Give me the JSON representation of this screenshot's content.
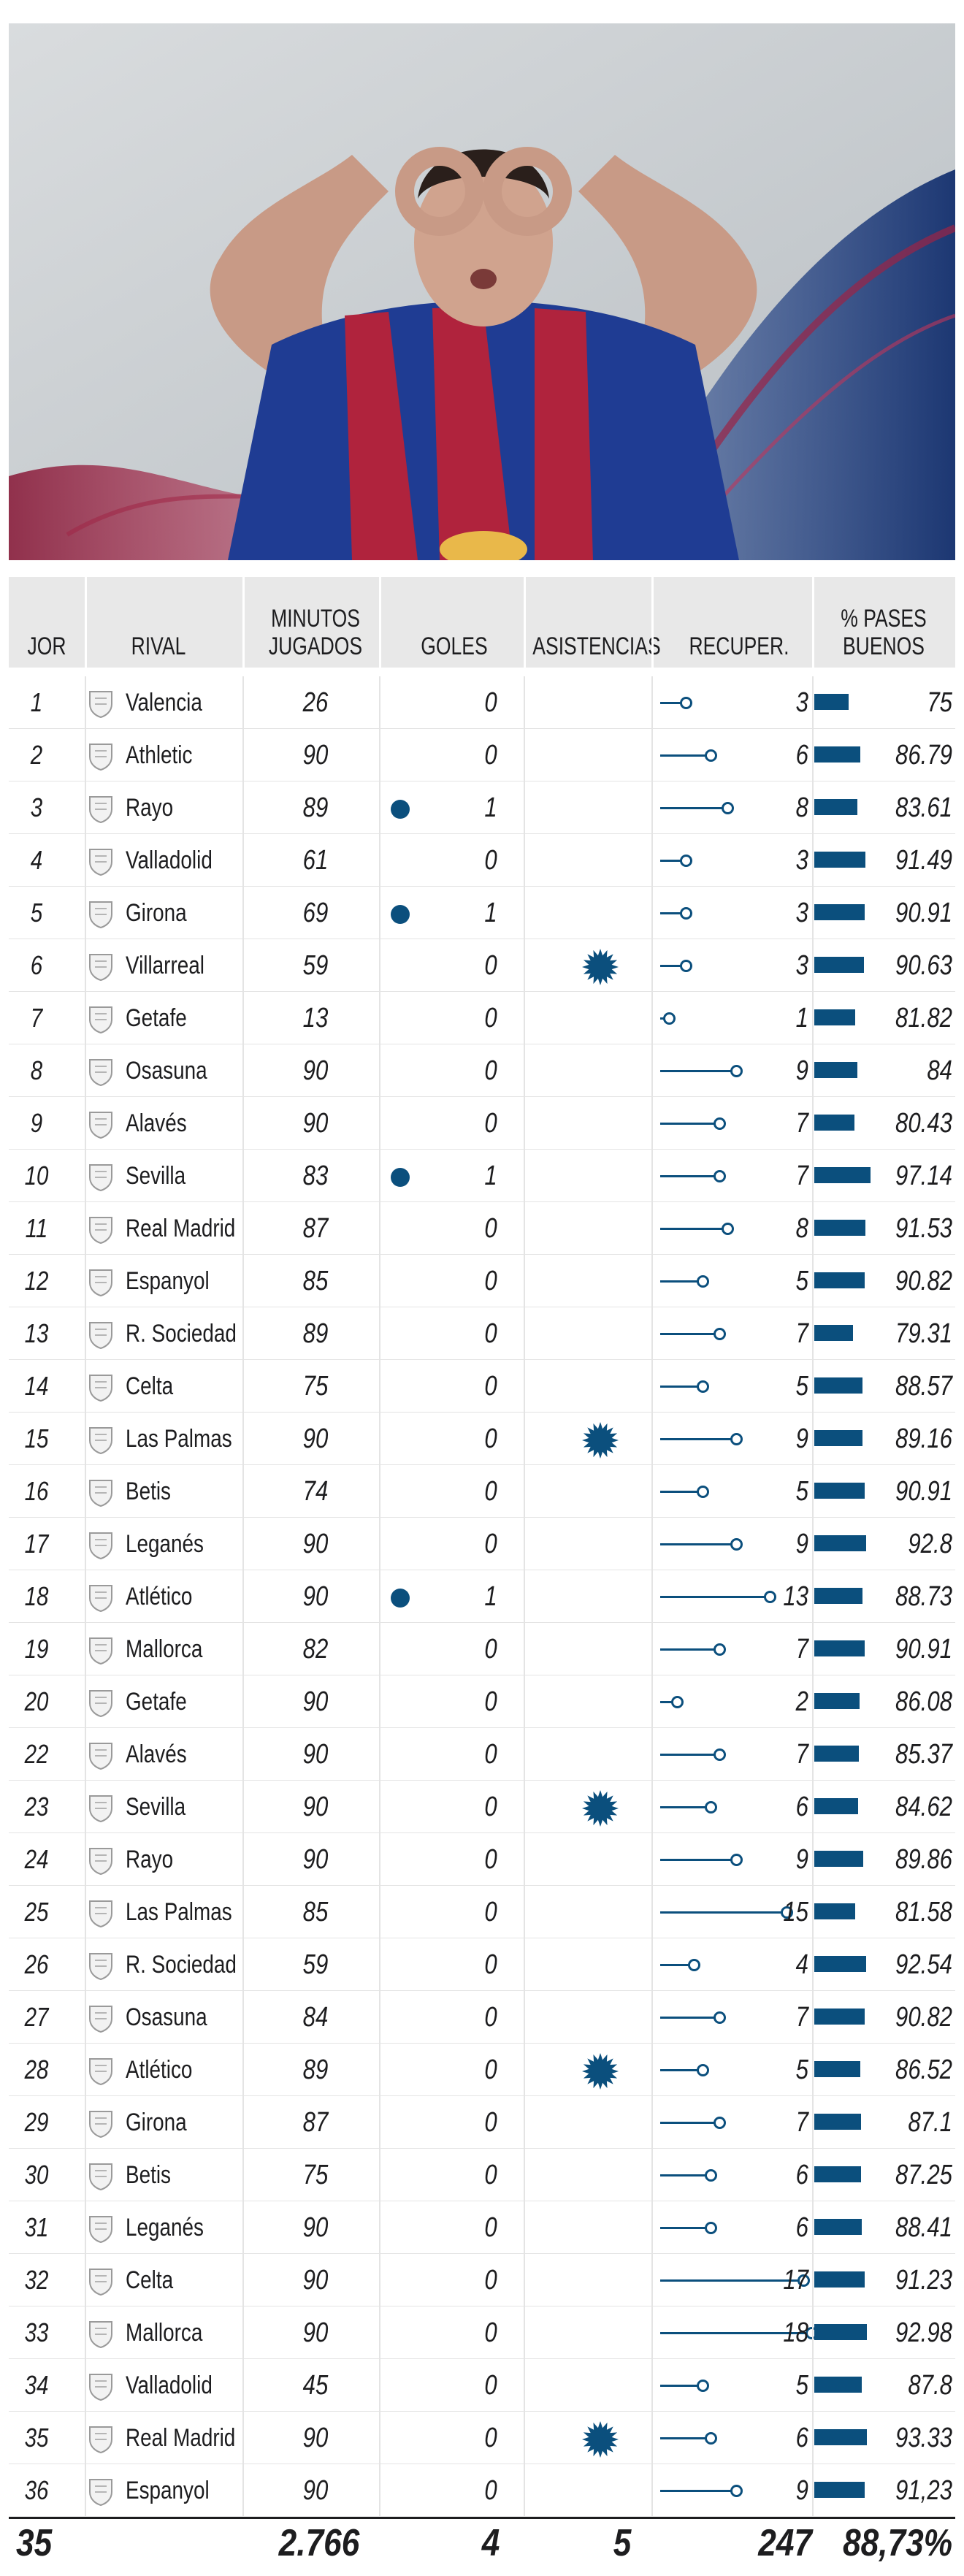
{
  "colors": {
    "accent": "#0b4f7d",
    "header_bg": "#e8e8e8",
    "grid": "#e4e4e4"
  },
  "header": {
    "jor": "JOR",
    "rival": "RIVAL",
    "minutos": "MINUTOS\nJUGADOS",
    "goles": "GOLES",
    "asistencias": "ASISTENCIAS",
    "recuper": "RECUPER.",
    "pases": "% PASES\nBUENOS"
  },
  "chart_data": {
    "type": "table",
    "columns": [
      "JOR",
      "RIVAL",
      "MINUTOS JUGADOS",
      "GOLES",
      "ASISTENCIAS",
      "RECUPER.",
      "% PASES BUENOS"
    ],
    "rows": [
      {
        "jor": "1",
        "rival": "Valencia",
        "min": "26",
        "goles": "0",
        "goal": false,
        "assist": false,
        "rec": 3,
        "pases": "75",
        "pases_value": 75
      },
      {
        "jor": "2",
        "rival": "Athletic",
        "min": "90",
        "goles": "0",
        "goal": false,
        "assist": false,
        "rec": 6,
        "pases": "86.79",
        "pases_value": 86.79
      },
      {
        "jor": "3",
        "rival": "Rayo",
        "min": "89",
        "goles": "1",
        "goal": true,
        "assist": false,
        "rec": 8,
        "pases": "83.61",
        "pases_value": 83.61
      },
      {
        "jor": "4",
        "rival": "Valladolid",
        "min": "61",
        "goles": "0",
        "goal": false,
        "assist": false,
        "rec": 3,
        "pases": "91.49",
        "pases_value": 91.49
      },
      {
        "jor": "5",
        "rival": "Girona",
        "min": "69",
        "goles": "1",
        "goal": true,
        "assist": false,
        "rec": 3,
        "pases": "90.91",
        "pases_value": 90.91
      },
      {
        "jor": "6",
        "rival": "Villarreal",
        "min": "59",
        "goles": "0",
        "goal": false,
        "assist": true,
        "rec": 3,
        "pases": "90.63",
        "pases_value": 90.63
      },
      {
        "jor": "7",
        "rival": "Getafe",
        "min": "13",
        "goles": "0",
        "goal": false,
        "assist": false,
        "rec": 1,
        "pases": "81.82",
        "pases_value": 81.82
      },
      {
        "jor": "8",
        "rival": "Osasuna",
        "min": "90",
        "goles": "0",
        "goal": false,
        "assist": false,
        "rec": 9,
        "pases": "84",
        "pases_value": 84
      },
      {
        "jor": "9",
        "rival": "Alavés",
        "min": "90",
        "goles": "0",
        "goal": false,
        "assist": false,
        "rec": 7,
        "pases": "80.43",
        "pases_value": 80.43
      },
      {
        "jor": "10",
        "rival": "Sevilla",
        "min": "83",
        "goles": "1",
        "goal": true,
        "assist": false,
        "rec": 7,
        "pases": "97.14",
        "pases_value": 97.14
      },
      {
        "jor": "11",
        "rival": "Real Madrid",
        "min": "87",
        "goles": "0",
        "goal": false,
        "assist": false,
        "rec": 8,
        "pases": "91.53",
        "pases_value": 91.53
      },
      {
        "jor": "12",
        "rival": "Espanyol",
        "min": "85",
        "goles": "0",
        "goal": false,
        "assist": false,
        "rec": 5,
        "pases": "90.82",
        "pases_value": 90.82
      },
      {
        "jor": "13",
        "rival": "R. Sociedad",
        "min": "89",
        "goles": "0",
        "goal": false,
        "assist": false,
        "rec": 7,
        "pases": "79.31",
        "pases_value": 79.31
      },
      {
        "jor": "14",
        "rival": "Celta",
        "min": "75",
        "goles": "0",
        "goal": false,
        "assist": false,
        "rec": 5,
        "pases": "88.57",
        "pases_value": 88.57
      },
      {
        "jor": "15",
        "rival": "Las Palmas",
        "min": "90",
        "goles": "0",
        "goal": false,
        "assist": true,
        "rec": 9,
        "pases": "89.16",
        "pases_value": 89.16
      },
      {
        "jor": "16",
        "rival": "Betis",
        "min": "74",
        "goles": "0",
        "goal": false,
        "assist": false,
        "rec": 5,
        "pases": "90.91",
        "pases_value": 90.91
      },
      {
        "jor": "17",
        "rival": "Leganés",
        "min": "90",
        "goles": "0",
        "goal": false,
        "assist": false,
        "rec": 9,
        "pases": "92.8",
        "pases_value": 92.8
      },
      {
        "jor": "18",
        "rival": "Atlético",
        "min": "90",
        "goles": "1",
        "goal": true,
        "assist": false,
        "rec": 13,
        "pases": "88.73",
        "pases_value": 88.73
      },
      {
        "jor": "19",
        "rival": "Mallorca",
        "min": "82",
        "goles": "0",
        "goal": false,
        "assist": false,
        "rec": 7,
        "pases": "90.91",
        "pases_value": 90.91
      },
      {
        "jor": "20",
        "rival": "Getafe",
        "min": "90",
        "goles": "0",
        "goal": false,
        "assist": false,
        "rec": 2,
        "pases": "86.08",
        "pases_value": 86.08
      },
      {
        "jor": "22",
        "rival": "Alavés",
        "min": "90",
        "goles": "0",
        "goal": false,
        "assist": false,
        "rec": 7,
        "pases": "85.37",
        "pases_value": 85.37
      },
      {
        "jor": "23",
        "rival": "Sevilla",
        "min": "90",
        "goles": "0",
        "goal": false,
        "assist": true,
        "rec": 6,
        "pases": "84.62",
        "pases_value": 84.62
      },
      {
        "jor": "24",
        "rival": "Rayo",
        "min": "90",
        "goles": "0",
        "goal": false,
        "assist": false,
        "rec": 9,
        "pases": "89.86",
        "pases_value": 89.86
      },
      {
        "jor": "25",
        "rival": "Las Palmas",
        "min": "85",
        "goles": "0",
        "goal": false,
        "assist": false,
        "rec": 15,
        "pases": "81.58",
        "pases_value": 81.58
      },
      {
        "jor": "26",
        "rival": "R. Sociedad",
        "min": "59",
        "goles": "0",
        "goal": false,
        "assist": false,
        "rec": 4,
        "pases": "92.54",
        "pases_value": 92.54
      },
      {
        "jor": "27",
        "rival": "Osasuna",
        "min": "84",
        "goles": "0",
        "goal": false,
        "assist": false,
        "rec": 7,
        "pases": "90.82",
        "pases_value": 90.82
      },
      {
        "jor": "28",
        "rival": "Atlético",
        "min": "89",
        "goles": "0",
        "goal": false,
        "assist": true,
        "rec": 5,
        "pases": "86.52",
        "pases_value": 86.52
      },
      {
        "jor": "29",
        "rival": "Girona",
        "min": "87",
        "goles": "0",
        "goal": false,
        "assist": false,
        "rec": 7,
        "pases": "87.1",
        "pases_value": 87.1
      },
      {
        "jor": "30",
        "rival": "Betis",
        "min": "75",
        "goles": "0",
        "goal": false,
        "assist": false,
        "rec": 6,
        "pases": "87.25",
        "pases_value": 87.25
      },
      {
        "jor": "31",
        "rival": "Leganés",
        "min": "90",
        "goles": "0",
        "goal": false,
        "assist": false,
        "rec": 6,
        "pases": "88.41",
        "pases_value": 88.41
      },
      {
        "jor": "32",
        "rival": "Celta",
        "min": "90",
        "goles": "0",
        "goal": false,
        "assist": false,
        "rec": 17,
        "pases": "91.23",
        "pases_value": 91.23
      },
      {
        "jor": "33",
        "rival": "Mallorca",
        "min": "90",
        "goles": "0",
        "goal": false,
        "assist": false,
        "rec": 18,
        "pases": "92.98",
        "pases_value": 92.98
      },
      {
        "jor": "34",
        "rival": "Valladolid",
        "min": "45",
        "goles": "0",
        "goal": false,
        "assist": false,
        "rec": 5,
        "pases": "87.8",
        "pases_value": 87.8
      },
      {
        "jor": "35",
        "rival": "Real Madrid",
        "min": "90",
        "goles": "0",
        "goal": false,
        "assist": true,
        "rec": 6,
        "pases": "93.33",
        "pases_value": 93.33
      },
      {
        "jor": "36",
        "rival": "Espanyol",
        "min": "90",
        "goles": "0",
        "goal": false,
        "assist": false,
        "rec": 9,
        "pases": "91,23",
        "pases_value": 91.23
      }
    ],
    "totals": {
      "jornadas": "35",
      "minutos": "2.766",
      "goles": "4",
      "asistencias": "5",
      "recuperaciones": "247",
      "pases": "88,73%"
    },
    "assist_icon": "starburst-icon",
    "goal_icon": "dot-icon",
    "team_icons": "crest-icon"
  }
}
